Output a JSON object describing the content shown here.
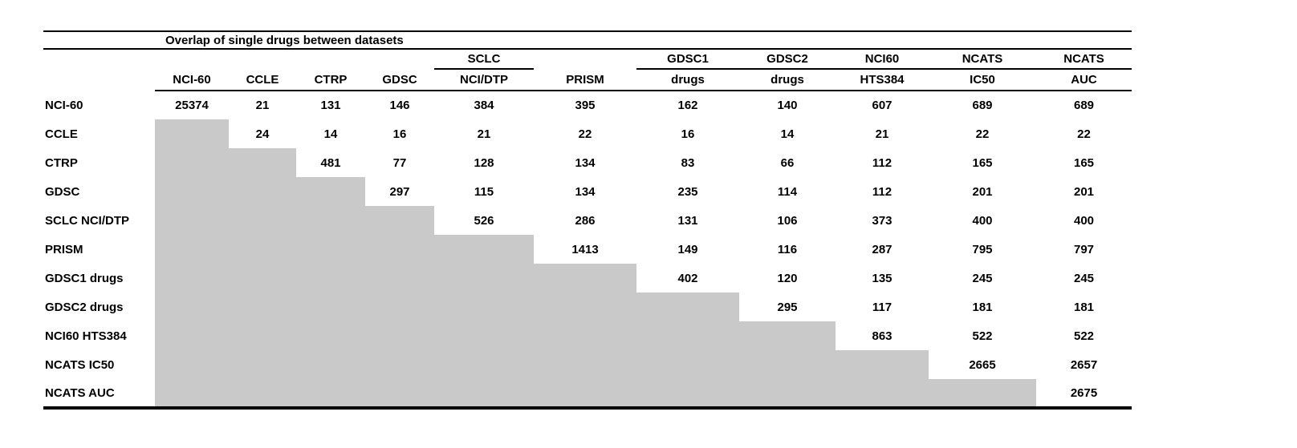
{
  "chart_data": {
    "type": "table",
    "title": "Overlap of single drugs between datasets",
    "group_headers": [
      "",
      "",
      "",
      "",
      "SCLC",
      "",
      "GDSC1",
      "GDSC2",
      "NCI60",
      "NCATS",
      "NCATS"
    ],
    "column_headers": [
      "NCI-60",
      "CCLE",
      "CTRP",
      "GDSC",
      "NCI/DTP",
      "PRISM",
      "drugs",
      "drugs",
      "HTS384",
      "IC50",
      "AUC"
    ],
    "rows": [
      {
        "label": "NCI-60",
        "values": [
          25374,
          21,
          131,
          146,
          384,
          395,
          162,
          140,
          607,
          689,
          689
        ]
      },
      {
        "label": "CCLE",
        "values": [
          null,
          24,
          14,
          16,
          21,
          22,
          16,
          14,
          21,
          22,
          22
        ]
      },
      {
        "label": "CTRP",
        "values": [
          null,
          null,
          481,
          77,
          128,
          134,
          83,
          66,
          112,
          165,
          165
        ]
      },
      {
        "label": "GDSC",
        "values": [
          null,
          null,
          null,
          297,
          115,
          134,
          235,
          114,
          112,
          201,
          201
        ]
      },
      {
        "label": "SCLC NCI/DTP",
        "values": [
          null,
          null,
          null,
          null,
          526,
          286,
          131,
          106,
          373,
          400,
          400
        ]
      },
      {
        "label": "PRISM",
        "values": [
          null,
          null,
          null,
          null,
          null,
          1413,
          149,
          116,
          287,
          795,
          797
        ]
      },
      {
        "label": "GDSC1 drugs",
        "values": [
          null,
          null,
          null,
          null,
          null,
          null,
          402,
          120,
          135,
          245,
          245
        ]
      },
      {
        "label": "GDSC2 drugs",
        "values": [
          null,
          null,
          null,
          null,
          null,
          null,
          null,
          295,
          117,
          181,
          181
        ]
      },
      {
        "label": "NCI60 HTS384",
        "values": [
          null,
          null,
          null,
          null,
          null,
          null,
          null,
          null,
          863,
          522,
          522
        ]
      },
      {
        "label": "NCATS IC50",
        "values": [
          null,
          null,
          null,
          null,
          null,
          null,
          null,
          null,
          null,
          2665,
          2657
        ]
      },
      {
        "label": "NCATS AUC",
        "values": [
          null,
          null,
          null,
          null,
          null,
          null,
          null,
          null,
          null,
          null,
          2675
        ]
      }
    ],
    "shaded_region": "lower-triangle",
    "legend_position": "none",
    "grid": "off",
    "colors": {
      "shaded_cell": "#c9c9c9",
      "text": "#000000",
      "background": "#ffffff"
    }
  }
}
